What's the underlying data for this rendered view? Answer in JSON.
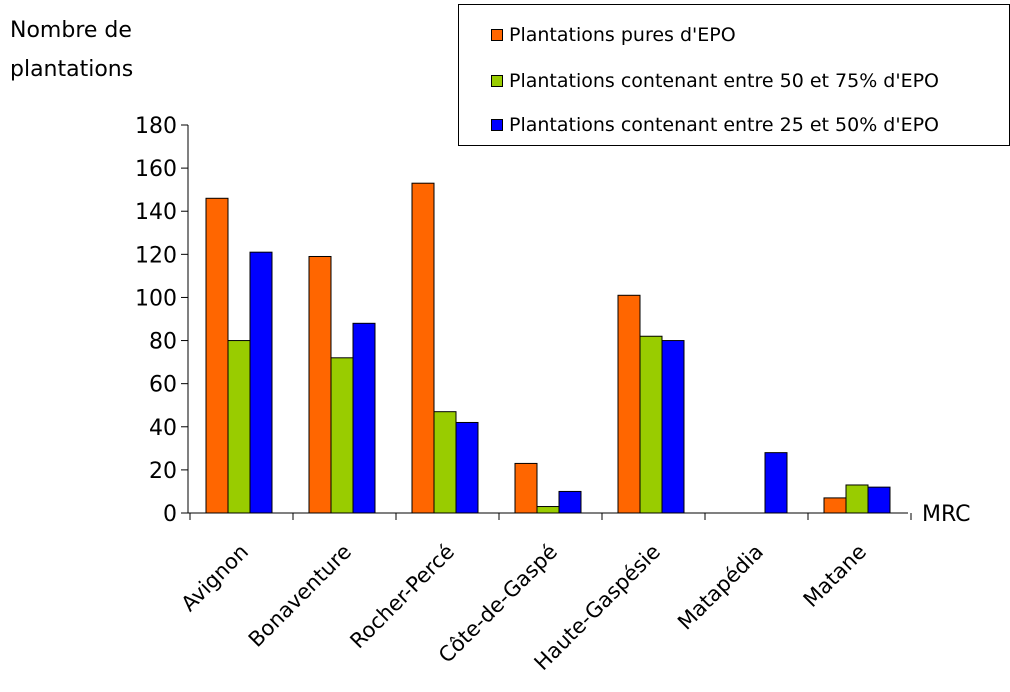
{
  "chart_data": {
    "type": "bar",
    "ylabel": [
      "Nombre de",
      "plantations"
    ],
    "xlabel": "MRC",
    "ylim": [
      0,
      180
    ],
    "yticks": [
      0,
      20,
      40,
      60,
      80,
      100,
      120,
      140,
      160,
      180
    ],
    "categories": [
      "Avignon",
      "Bonaventure",
      "Rocher-Percé",
      "Côte-de-Gaspé",
      "Haute-Gaspésie",
      "Matapédia",
      "Matane"
    ],
    "series": [
      {
        "name": "Plantations pures d'EPO",
        "color": "#ff6600",
        "values": [
          146,
          119,
          153,
          23,
          101,
          0,
          7
        ]
      },
      {
        "name": "Plantations contenant entre 50 et 75% d'EPO",
        "color": "#99cc00",
        "values": [
          80,
          72,
          47,
          3,
          82,
          0,
          13
        ]
      },
      {
        "name": "Plantations contenant entre 25 et 50% d'EPO",
        "color": "#0000ff",
        "values": [
          121,
          88,
          42,
          10,
          80,
          28,
          12
        ]
      }
    ],
    "legend_position": "top-right",
    "grid": false
  }
}
